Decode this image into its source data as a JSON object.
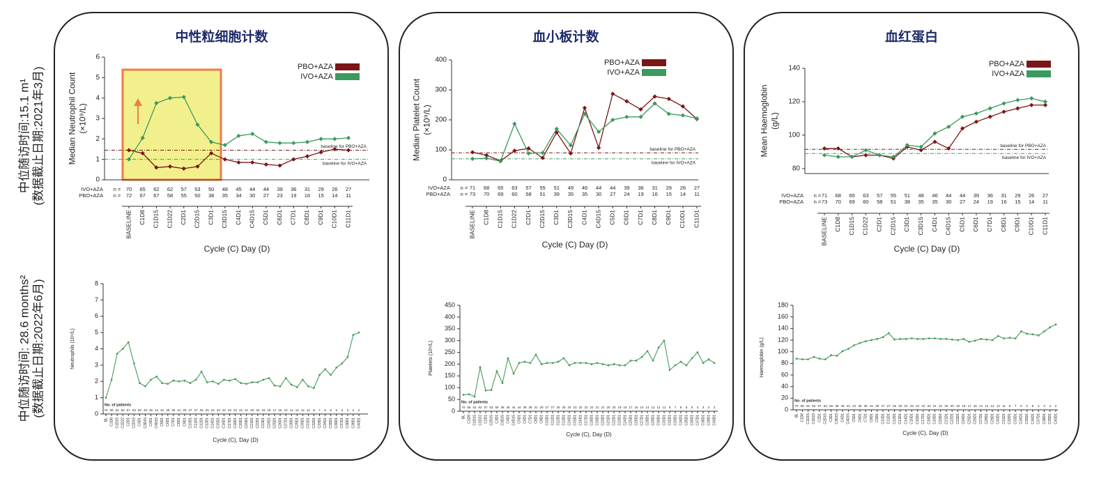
{
  "row_labels": [
    [
      "中位随访时间:15.1 m¹",
      "(数据截止日期:2021年3月)"
    ],
    [
      "中位随访时间: 28.6 months²",
      "(数据截止日期:2022年6月)"
    ]
  ],
  "chart_data": [
    {
      "type": "line",
      "title": "中性粒细胞计数",
      "ylabel": [
        "Median Neutrophil Count",
        "(×10⁹/L)"
      ],
      "xlabel": "Cycle (C) Day (D)",
      "categories": [
        "BASELINE",
        "C1D8",
        "C1D15",
        "C1D22",
        "C2D1",
        "C2D15",
        "C3D1",
        "C3D15",
        "C4D1",
        "C4D15",
        "C5D1",
        "C6D1",
        "C7D1",
        "C8D1",
        "C9D1",
        "C10D1",
        "C11D1"
      ],
      "series": [
        {
          "name": "PBO+AZA",
          "color": "#7a1616",
          "values": [
            1.45,
            1.3,
            0.6,
            0.65,
            0.55,
            0.65,
            1.3,
            1.0,
            0.85,
            0.85,
            0.75,
            0.7,
            1.0,
            1.15,
            1.35,
            1.5,
            1.45
          ]
        },
        {
          "name": "IVO+AZA",
          "color": "#3b9a5e",
          "values": [
            1.0,
            2.05,
            3.75,
            4.0,
            4.05,
            2.7,
            1.85,
            1.7,
            2.15,
            2.25,
            1.85,
            1.8,
            1.8,
            1.85,
            2.0,
            2.0,
            2.05
          ]
        }
      ],
      "annotations": [
        {
          "text": "baseline for PBO+AZA",
          "value": 1.45,
          "color": "#7a1616"
        },
        {
          "text": "baseline for IVO+AZA",
          "value": 1.0,
          "color": "#3b9a5e"
        }
      ],
      "patients": {
        "label": "n =",
        "rows": [
          {
            "name": "IVO+AZA",
            "color": "#3b9a5e",
            "values": [
              70,
              65,
              62,
              62,
              57,
              53,
              50,
              48,
              45,
              44,
              44,
              39,
              36,
              31,
              29,
              26,
              27
            ]
          },
          {
            "name": "PBO+AZA",
            "color": "#7a1616",
            "values": [
              72,
              67,
              67,
              58,
              55,
              50,
              38,
              35,
              34,
              30,
              27,
              23,
              19,
              16,
              15,
              14,
              11
            ]
          }
        ]
      },
      "ylim": [
        0,
        6
      ],
      "yticks": [
        0,
        1,
        2,
        3,
        4,
        5,
        6
      ]
    },
    {
      "type": "line",
      "title": "血小板计数",
      "ylabel": [
        "Median Platelet Count",
        "(×10⁹/L)"
      ],
      "xlabel": "Cycle (C) Day (D)",
      "categories": [
        "BASELINE",
        "C1D8",
        "C1D15",
        "C1D22",
        "C2D1",
        "C2D15",
        "C3D1",
        "C3D15",
        "C4D1",
        "C4D15",
        "C5D1",
        "C6D1",
        "C7D1",
        "C8D1",
        "C9D1",
        "C10D1",
        "C11D1"
      ],
      "series": [
        {
          "name": "PBO+AZA",
          "color": "#7a1616",
          "values": [
            92,
            82,
            63,
            97,
            105,
            73,
            158,
            88,
            240,
            107,
            287,
            262,
            235,
            278,
            270,
            245,
            203
          ]
        },
        {
          "name": "IVO+AZA",
          "color": "#3b9a5e",
          "values": [
            70,
            72,
            62,
            187,
            88,
            90,
            170,
            115,
            220,
            160,
            200,
            210,
            210,
            255,
            220,
            215,
            205
          ]
        }
      ],
      "annotations": [
        {
          "text": "baseline for PBO+AZA",
          "value": 90,
          "color": "#7a1616"
        },
        {
          "text": "baseline for IVO+AZA",
          "value": 70,
          "color": "#3b9a5e"
        }
      ],
      "patients": {
        "label": "n =",
        "rows": [
          {
            "name": "IVO+AZA",
            "color": "#3b9a5e",
            "values": [
              71,
              68,
              65,
              63,
              57,
              55,
              51,
              49,
              46,
              44,
              44,
              39,
              36,
              31,
              29,
              26,
              27
            ]
          },
          {
            "name": "PBO+AZA",
            "color": "#7a1616",
            "values": [
              73,
              70,
              69,
              60,
              58,
              51,
              39,
              35,
              35,
              30,
              27,
              24,
              19,
              16,
              15,
              14,
              11
            ]
          }
        ]
      },
      "ylim": [
        0,
        400
      ],
      "yticks": [
        0,
        100,
        200,
        300,
        400
      ]
    },
    {
      "type": "line",
      "title": "血红蛋白",
      "ylabel": [
        "Mean Haemoglobin",
        "(g/L)"
      ],
      "xlabel": "Cycle (C) Day (D)",
      "categories": [
        "BASELINE",
        "C1D8",
        "C1D15",
        "C1D22",
        "C2D1",
        "C2D15",
        "C3D1",
        "C3D15",
        "C4D1",
        "C4D15",
        "C5D1",
        "C6D1",
        "C7D1",
        "C8D1",
        "C9D1",
        "C10D1",
        "C11D1"
      ],
      "series": [
        {
          "name": "PBO+AZA",
          "color": "#7a1616",
          "values": [
            92,
            92,
            87,
            88,
            88,
            86,
            93,
            91,
            96,
            92,
            104,
            108,
            111,
            114,
            116,
            118,
            118
          ]
        },
        {
          "name": "IVO+AZA",
          "color": "#3b9a5e",
          "values": [
            88,
            87,
            87,
            91,
            88,
            87,
            94,
            93,
            101,
            105,
            111,
            113,
            116,
            119,
            121,
            122,
            120
          ]
        }
      ],
      "annotations": [
        {
          "text": "baseline for PBO+AZA",
          "value": 91.5,
          "color": "#7a1616"
        },
        {
          "text": "baseline for IVO+AZA",
          "value": 89,
          "color": "#3b9a5e"
        }
      ],
      "patients": {
        "label": "n =",
        "rows": [
          {
            "name": "IVO+AZA",
            "color": "#3b9a5e",
            "values": [
              71,
              68,
              65,
              63,
              57,
              55,
              51,
              48,
              46,
              44,
              44,
              39,
              36,
              31,
              29,
              26,
              27
            ]
          },
          {
            "name": "PBO+AZA",
            "color": "#7a1616",
            "values": [
              73,
              70,
              69,
              60,
              58,
              51,
              38,
              35,
              35,
              30,
              27,
              24,
              19,
              16,
              15,
              14,
              11
            ]
          }
        ]
      },
      "ylim": [
        77,
        140
      ],
      "yticks": [
        80,
        100,
        120,
        140
      ]
    },
    {
      "type": "line",
      "ylabel": [
        "Neutrophils (10⁹/L)"
      ],
      "xlabel": "Cycle (C), Day (D)",
      "color": "#4a9a5a",
      "categories": [
        "BL",
        "C1D8",
        "C1D15",
        "C1D22",
        "C2D1",
        "C2D15",
        "C3D1",
        "C3D15",
        "C4D1",
        "C4D15",
        "C5D1",
        "C6D1",
        "C7D1",
        "C8D1",
        "C9D1",
        "C10D1",
        "C11D1",
        "C12D1",
        "C13D1",
        "C14D1",
        "C15D1",
        "C16D1",
        "C17D1",
        "C18D1",
        "C19D1",
        "C20D1",
        "C21D1",
        "C22D1",
        "C23D1",
        "C24D1",
        "C25D1",
        "C26D1",
        "C27D1",
        "C28D1",
        "C29D1",
        "C30D1",
        "C31D1",
        "C32D1",
        "C33D1",
        "C34D1",
        "C35D1",
        "C36D1",
        "C37D1",
        "C38D1",
        "C39D1",
        "C40D1"
      ],
      "values": [
        1.0,
        2.1,
        3.7,
        4.0,
        4.4,
        3.1,
        1.9,
        1.7,
        2.1,
        2.3,
        1.9,
        1.85,
        2.05,
        2.0,
        2.05,
        1.9,
        2.1,
        2.6,
        1.95,
        2.0,
        1.85,
        2.1,
        2.05,
        2.15,
        1.9,
        1.85,
        1.95,
        1.95,
        2.1,
        2.2,
        1.75,
        1.7,
        2.2,
        1.8,
        1.65,
        2.1,
        1.7,
        1.6,
        2.4,
        2.75,
        2.4,
        2.85,
        3.1,
        3.5,
        4.85,
        5.0
      ],
      "patients": {
        "label": "No. of patients",
        "values": [
          70,
          65,
          62,
          62,
          57,
          53,
          50,
          48,
          45,
          44,
          44,
          39,
          36,
          31,
          29,
          27,
          27,
          25,
          25,
          24,
          23,
          22,
          22,
          22,
          21,
          21,
          20,
          20,
          19,
          19,
          17,
          16,
          14,
          14,
          12,
          12,
          11,
          8,
          7,
          6,
          5,
          5,
          3,
          3,
          2,
          2
        ]
      },
      "ylim": [
        0,
        8
      ],
      "yticks": [
        0,
        1,
        2,
        3,
        4,
        5,
        6,
        7,
        8
      ]
    },
    {
      "type": "line",
      "ylabel": [
        "Platelets (10⁹/L)"
      ],
      "xlabel": "Cycle (C), Day (D)",
      "color": "#4a9a5a",
      "categories": [
        "BL",
        "C1D8",
        "C1D15",
        "C1D22",
        "C2D1",
        "C2D15",
        "C3D1",
        "C3D15",
        "C4D1",
        "C4D15",
        "C5D1",
        "C6D1",
        "C7D1",
        "C8D1",
        "C9D1",
        "C10D1",
        "C11D1",
        "C12D1",
        "C13D1",
        "C14D1",
        "C15D1",
        "C16D1",
        "C17D1",
        "C18D1",
        "C19D1",
        "C20D1",
        "C21D1",
        "C22D1",
        "C23D1",
        "C24D1",
        "C25D1",
        "C26D1",
        "C27D1",
        "C28D1",
        "C29D1",
        "C30D1",
        "C31D1",
        "C32D1",
        "C33D1",
        "C34D1",
        "C35D1",
        "C36D1",
        "C37D1",
        "C38D1",
        "C39D1",
        "C40D1"
      ],
      "values": [
        70,
        72,
        62,
        187,
        88,
        90,
        170,
        120,
        225,
        160,
        205,
        210,
        205,
        240,
        200,
        205,
        205,
        210,
        225,
        195,
        205,
        205,
        205,
        200,
        205,
        200,
        195,
        200,
        195,
        195,
        215,
        215,
        230,
        255,
        215,
        270,
        300,
        175,
        195,
        210,
        195,
        225,
        250,
        205,
        220,
        205
      ],
      "patients": {
        "label": "No. of patients",
        "values": [
          70,
          65,
          62,
          62,
          57,
          53,
          50,
          48,
          45,
          44,
          44,
          39,
          36,
          31,
          29,
          27,
          27,
          25,
          25,
          24,
          23,
          22,
          22,
          22,
          21,
          21,
          20,
          20,
          19,
          19,
          17,
          16,
          14,
          14,
          12,
          12,
          11,
          8,
          7,
          6,
          5,
          5,
          3,
          3,
          2,
          2
        ]
      },
      "ylim": [
        0,
        450
      ],
      "yticks": [
        0,
        50,
        100,
        150,
        200,
        250,
        300,
        350,
        400,
        450
      ]
    },
    {
      "type": "line",
      "ylabel": [
        "Haemoglobin (g/L)"
      ],
      "xlabel": "Cycle (C), Day (D)",
      "color": "#4a9a5a",
      "categories": [
        "BL",
        "C1D8",
        "C1D15",
        "C1D22",
        "C2D1",
        "C2D15",
        "C3D1",
        "C3D15",
        "C4D1",
        "C4D15",
        "C5D1",
        "C6D1",
        "C7D1",
        "C8D1",
        "C9D1",
        "C10D1",
        "C11D1",
        "C12D1",
        "C13D1",
        "C14D1",
        "C15D1",
        "C16D1",
        "C17D1",
        "C18D1",
        "C19D1",
        "C20D1",
        "C21D1",
        "C22D1",
        "C23D1",
        "C24D1",
        "C25D1",
        "C26D1",
        "C27D1",
        "C28D1",
        "C29D1",
        "C30D1",
        "C31D1",
        "C32D1",
        "C33D1",
        "C34D1",
        "C35D1",
        "C36D1",
        "C37D1",
        "C38D1",
        "C39D1",
        "C40D1"
      ],
      "values": [
        88,
        87,
        87,
        91,
        88,
        87,
        94,
        93,
        101,
        105,
        111,
        115,
        118,
        120,
        122,
        125,
        132,
        121,
        122,
        122,
        123,
        122,
        122,
        123,
        123,
        122,
        122,
        121,
        120,
        122,
        117,
        119,
        122,
        121,
        120,
        127,
        123,
        124,
        123,
        135,
        131,
        130,
        128,
        135,
        142,
        147
      ],
      "patients": {
        "label": "No. of patients",
        "values": [
          70,
          65,
          62,
          62,
          57,
          53,
          50,
          48,
          45,
          44,
          44,
          39,
          36,
          31,
          29,
          27,
          27,
          25,
          25,
          24,
          23,
          22,
          22,
          22,
          21,
          21,
          20,
          20,
          19,
          19,
          17,
          16,
          14,
          14,
          12,
          12,
          11,
          8,
          7,
          6,
          5,
          5,
          3,
          3,
          2,
          2
        ]
      },
      "ylim": [
        0,
        180
      ],
      "yticks": [
        0,
        20,
        40,
        60,
        80,
        100,
        120,
        140,
        160,
        180
      ]
    }
  ]
}
